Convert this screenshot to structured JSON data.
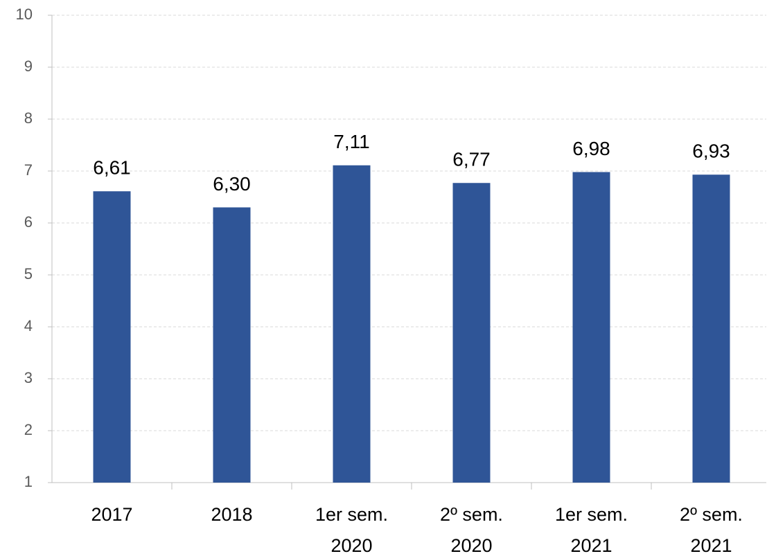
{
  "chart_data": {
    "type": "bar",
    "categories": [
      "2017",
      "2018",
      "1er sem.\n2020",
      "2º sem.\n2020",
      "1er sem.\n2021",
      "2º sem.\n2021"
    ],
    "values": [
      6.61,
      6.3,
      7.11,
      6.77,
      6.98,
      6.93
    ],
    "value_labels": [
      "6,61",
      "6,30",
      "7,11",
      "6,77",
      "6,98",
      "6,93"
    ],
    "color": "#2f5597",
    "ylim": [
      1,
      10
    ],
    "yticks": [
      1,
      2,
      3,
      4,
      5,
      6,
      7,
      8,
      9,
      10
    ],
    "grid": true
  }
}
